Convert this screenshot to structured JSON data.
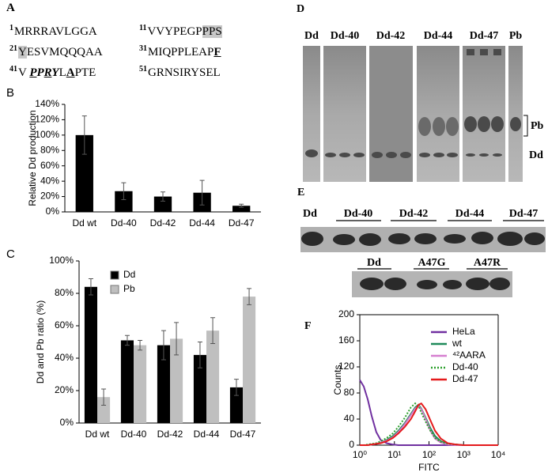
{
  "panel_a": {
    "label": "A",
    "lines": [
      {
        "num": "1",
        "parts": [
          "MRRRAVLGGA"
        ]
      },
      {
        "num": "11",
        "parts": [
          "VVYPEGP",
          "PPS"
        ]
      },
      {
        "num": "21",
        "parts": [
          "Y",
          "ESVMQQQAA"
        ]
      },
      {
        "num": "31",
        "parts": [
          "MIQPPLEAP",
          "F"
        ]
      },
      {
        "num": "41",
        "parts": [
          "V",
          "P",
          "P",
          "R",
          "Y",
          "L",
          "A",
          "PTE"
        ]
      },
      {
        "num": "51",
        "parts": [
          "GRNSIRYSEL"
        ]
      }
    ]
  },
  "panel_d": {
    "label": "D",
    "lanes": [
      "Dd",
      "Dd-40",
      "Dd-42",
      "Dd-44",
      "Dd-47",
      "Pb"
    ],
    "band_labels": [
      "Pb",
      "Dd"
    ]
  },
  "panel_e": {
    "label": "E",
    "top_lanes": [
      "Dd",
      "Dd-40",
      "Dd-42",
      "Dd-44",
      "Dd-47"
    ],
    "bottom_lanes": [
      "Dd",
      "A47G",
      "A47R"
    ]
  },
  "chart_data": [
    {
      "type": "bar",
      "label": "B",
      "ylabel": "Relative Dd production",
      "categories": [
        "Dd wt",
        "Dd-40",
        "Dd-42",
        "Dd-44",
        "Dd-47"
      ],
      "values": [
        100,
        27,
        20,
        25,
        8
      ],
      "errors": [
        25,
        11,
        6,
        16,
        2
      ],
      "color": "#000000",
      "ylim": [
        0,
        140
      ],
      "yticks": [
        {
          "value": 0,
          "label": "0%"
        },
        {
          "value": 20,
          "label": "20%"
        },
        {
          "value": 40,
          "label": "40%"
        },
        {
          "value": 60,
          "label": "60%"
        },
        {
          "value": 80,
          "label": "80%"
        },
        {
          "value": 100,
          "label": "100%"
        },
        {
          "value": 120,
          "label": "120%"
        },
        {
          "value": 140,
          "label": "140%"
        }
      ]
    },
    {
      "type": "bar",
      "label": "C",
      "ylabel": "Dd and Pb ratio (%)",
      "categories": [
        "Dd wt",
        "Dd-40",
        "Dd-42",
        "Dd-44",
        "Dd-47"
      ],
      "series": [
        {
          "name": "Dd",
          "color": "#000000",
          "values": [
            84,
            51,
            48,
            42,
            22
          ],
          "errors": [
            5,
            3,
            9,
            8,
            5
          ]
        },
        {
          "name": "Pb",
          "color": "#bfbfbf",
          "values": [
            16,
            48,
            52,
            57,
            78
          ],
          "errors": [
            5,
            3,
            10,
            8,
            5
          ]
        }
      ],
      "legend": "upper left",
      "ylim": [
        0,
        100
      ],
      "yticks": [
        {
          "value": 0,
          "label": "0%"
        },
        {
          "value": 20,
          "label": "20%"
        },
        {
          "value": 40,
          "label": "40%"
        },
        {
          "value": 60,
          "label": "60%"
        },
        {
          "value": 80,
          "label": "80%"
        },
        {
          "value": 100,
          "label": "100%"
        }
      ]
    },
    {
      "type": "line",
      "label": "F",
      "ylabel": "Counts",
      "xlabel": "FITC",
      "log_x": true,
      "frame": true,
      "legend": "upper right",
      "x": [
        1,
        1.3,
        1.7,
        2.2,
        3,
        4,
        6,
        9,
        13,
        20,
        30,
        40,
        50,
        60,
        80,
        110,
        150,
        220,
        350,
        600,
        1000,
        10000
      ],
      "series": [
        {
          "name": "HeLa",
          "color": "#7030a0",
          "values": [
            100,
            90,
            70,
            45,
            20,
            8,
            3,
            1,
            0,
            0,
            0,
            0,
            0,
            0,
            0,
            0,
            0,
            0,
            0,
            0,
            0,
            0
          ]
        },
        {
          "name": "wt",
          "color": "#1f8a5a",
          "values": [
            0,
            0,
            0,
            1,
            2,
            4,
            8,
            14,
            22,
            34,
            48,
            58,
            62,
            56,
            42,
            26,
            14,
            6,
            2,
            1,
            0,
            0
          ]
        },
        {
          "name": "⁴²AARA",
          "color": "#d67fd0",
          "values": [
            0,
            0,
            0,
            1,
            2,
            4,
            7,
            12,
            20,
            32,
            46,
            56,
            60,
            55,
            40,
            22,
            10,
            4,
            1,
            0,
            0,
            0
          ]
        },
        {
          "name": "Dd-40",
          "color": "#2ca02c",
          "dash": "dotted",
          "values": [
            0,
            0,
            1,
            2,
            3,
            6,
            11,
            18,
            28,
            42,
            58,
            64,
            60,
            50,
            36,
            22,
            11,
            5,
            2,
            1,
            0,
            0
          ]
        },
        {
          "name": "Dd-47",
          "color": "#e41a1c",
          "values": [
            0,
            0,
            0,
            1,
            2,
            3,
            6,
            11,
            18,
            28,
            40,
            52,
            62,
            64,
            55,
            38,
            22,
            10,
            3,
            1,
            0,
            0
          ]
        }
      ],
      "xlim": [
        1,
        10000
      ],
      "xticks": [
        {
          "value": 1,
          "label": "10⁰"
        },
        {
          "value": 10,
          "label": "10¹"
        },
        {
          "value": 100,
          "label": "10²"
        },
        {
          "value": 1000,
          "label": "10³"
        },
        {
          "value": 10000,
          "label": "10⁴"
        }
      ],
      "ylim": [
        0,
        200
      ],
      "yticks": [
        0,
        40,
        80,
        120,
        160,
        200
      ]
    }
  ]
}
